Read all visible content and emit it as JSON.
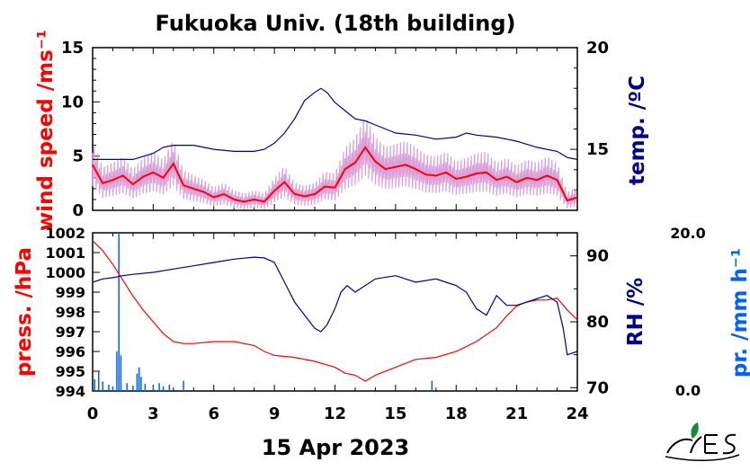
{
  "title": "Fukuoka Univ. (18th building)",
  "date_label": "15 Apr 2023",
  "colors": {
    "wind": "#ff0000",
    "wind_raw": "#d9a0d9",
    "temp": "#00008b",
    "press": "#ff0000",
    "rh": "#00008b",
    "precip": "#0060ff",
    "axis": "#000000",
    "logo": "#000000",
    "logo_leaf": "#1a8a3a"
  },
  "chart_data": [
    {
      "type": "line",
      "panel": "top",
      "title": "Fukuoka Univ. (18th building)",
      "xlabel": "",
      "x_ticks": [
        0,
        3,
        6,
        9,
        12,
        15,
        18,
        21,
        24
      ],
      "xlim": [
        0,
        24
      ],
      "y_left": {
        "label": "wind speed /ms⁻¹",
        "lim": [
          0,
          15
        ],
        "ticks": [
          0,
          5,
          10,
          15
        ]
      },
      "y_right": {
        "label": "temp. /ºC",
        "lim": [
          12,
          20
        ],
        "ticks": [
          15,
          20
        ]
      },
      "series": [
        {
          "axis": "left",
          "x": [
            0,
            0.5,
            1,
            1.5,
            2,
            2.5,
            3,
            3.5,
            4,
            4.5,
            5,
            5.5,
            6,
            6.5,
            7,
            7.5,
            8,
            8.5,
            9,
            9.5,
            10,
            10.5,
            11,
            11.5,
            12,
            12.5,
            13,
            13.5,
            14,
            14.5,
            15,
            15.5,
            16,
            16.5,
            17,
            17.5,
            18,
            18.5,
            19,
            19.5,
            20,
            20.5,
            21,
            21.5,
            22,
            22.5,
            23,
            23.5,
            24
          ],
          "values": [
            4.2,
            2.5,
            2.8,
            3.2,
            2.4,
            3.1,
            3.5,
            3.0,
            4.3,
            2.3,
            2.0,
            1.7,
            1.2,
            1.5,
            1.0,
            0.8,
            1.0,
            0.8,
            1.8,
            2.6,
            1.5,
            1.3,
            1.5,
            2.2,
            2.1,
            3.8,
            4.4,
            5.8,
            4.5,
            3.8,
            4.0,
            4.2,
            3.8,
            3.3,
            3.2,
            3.5,
            2.9,
            3.1,
            3.4,
            3.5,
            2.8,
            3.1,
            2.6,
            3.0,
            2.8,
            3.2,
            2.8,
            0.9,
            1.2
          ]
        },
        {
          "axis": "right",
          "x": [
            0,
            1,
            2,
            3,
            3.5,
            4,
            5,
            6,
            7,
            8,
            8.5,
            9,
            9.5,
            10,
            10.5,
            11,
            11.3,
            11.6,
            12,
            12.5,
            13,
            13.5,
            14,
            14.5,
            15,
            16,
            17,
            18,
            18.5,
            19,
            20,
            20.5,
            21,
            22,
            23,
            23.5,
            24
          ],
          "values": [
            14.5,
            14.5,
            14.5,
            14.8,
            15.1,
            15.2,
            15.2,
            15.0,
            14.9,
            14.9,
            15.0,
            15.3,
            15.8,
            16.5,
            17.4,
            17.8,
            18.0,
            17.8,
            17.3,
            16.9,
            16.5,
            16.4,
            16.2,
            16.0,
            15.8,
            15.7,
            15.5,
            15.6,
            15.8,
            15.7,
            15.6,
            15.5,
            15.4,
            15.1,
            14.9,
            14.6,
            14.5
          ]
        }
      ]
    },
    {
      "type": "line",
      "panel": "bottom",
      "xlabel": "15 Apr 2023",
      "x_ticks": [
        0,
        3,
        6,
        9,
        12,
        15,
        18,
        21,
        24
      ],
      "xlim": [
        0,
        24
      ],
      "y_left": {
        "label": "press. /hPa",
        "lim": [
          994,
          1002
        ],
        "ticks": [
          994,
          995,
          996,
          997,
          998,
          999,
          1000,
          1001,
          1002
        ]
      },
      "y_right": {
        "label": "RH /%",
        "lim": [
          69.5,
          93.5
        ],
        "ticks": [
          70,
          80,
          90
        ]
      },
      "y_far_right": {
        "label": "pr. /mm h⁻¹",
        "lim": [
          0,
          20.0
        ],
        "ticks": [
          0.0,
          20.0
        ]
      },
      "series": [
        {
          "axis": "left",
          "x": [
            0,
            0.5,
            1,
            1.5,
            2,
            2.5,
            3,
            3.5,
            4,
            4.5,
            5,
            6,
            7,
            8,
            8.5,
            9,
            10,
            11,
            12,
            12.5,
            13,
            13.5,
            14,
            15,
            16,
            17,
            18,
            19,
            20,
            20.5,
            21,
            21.5,
            22,
            22.5,
            23,
            23.5,
            24
          ],
          "values": [
            1001.6,
            1001.1,
            1000.4,
            999.6,
            998.8,
            998.1,
            997.5,
            996.9,
            996.5,
            996.4,
            996.4,
            996.5,
            996.5,
            996.3,
            996.0,
            995.8,
            995.7,
            995.5,
            995.2,
            994.9,
            994.8,
            994.5,
            994.8,
            995.2,
            995.6,
            995.7,
            996.0,
            996.5,
            997.2,
            997.8,
            998.3,
            998.5,
            998.6,
            998.6,
            998.7,
            998.1,
            997.6
          ]
        },
        {
          "axis": "right",
          "x": [
            0,
            0.5,
            1,
            1.5,
            2,
            3,
            4,
            5,
            6,
            7,
            8,
            8.5,
            9,
            9.5,
            10,
            10.5,
            11,
            11.3,
            11.6,
            12,
            12.3,
            12.6,
            13,
            14,
            15,
            16,
            17,
            17.5,
            18,
            18.5,
            19,
            19.5,
            20,
            20.5,
            21,
            21.5,
            22,
            22.5,
            23,
            23.3,
            23.5,
            24
          ],
          "values": [
            86.0,
            86.5,
            86.7,
            87.0,
            87.2,
            87.5,
            88.0,
            88.5,
            89.0,
            89.5,
            89.8,
            89.7,
            89.0,
            86.0,
            83.0,
            81.0,
            79.0,
            78.5,
            79.5,
            82.0,
            84.5,
            85.5,
            84.5,
            86.5,
            87.0,
            86.0,
            86.5,
            86.0,
            85.5,
            84.5,
            82.0,
            81.0,
            84.0,
            82.5,
            82.5,
            83.0,
            83.5,
            84.0,
            83.0,
            79.0,
            75.0,
            75.5
          ]
        },
        {
          "type": "bar",
          "axis": "far_right",
          "x": [
            0.1,
            0.3,
            0.5,
            0.8,
            1.0,
            1.2,
            1.3,
            1.4,
            1.7,
            2.0,
            2.2,
            2.3,
            2.4,
            2.6,
            3.0,
            3.3,
            3.5,
            3.8,
            4.5,
            16.8
          ],
          "values": [
            1.5,
            2.5,
            1.2,
            0.8,
            0.6,
            5.0,
            27.0,
            4.5,
            1.0,
            0.7,
            2.2,
            3.0,
            1.8,
            0.9,
            0.6,
            1.0,
            0.6,
            0.8,
            1.3,
            1.3
          ]
        }
      ]
    }
  ]
}
